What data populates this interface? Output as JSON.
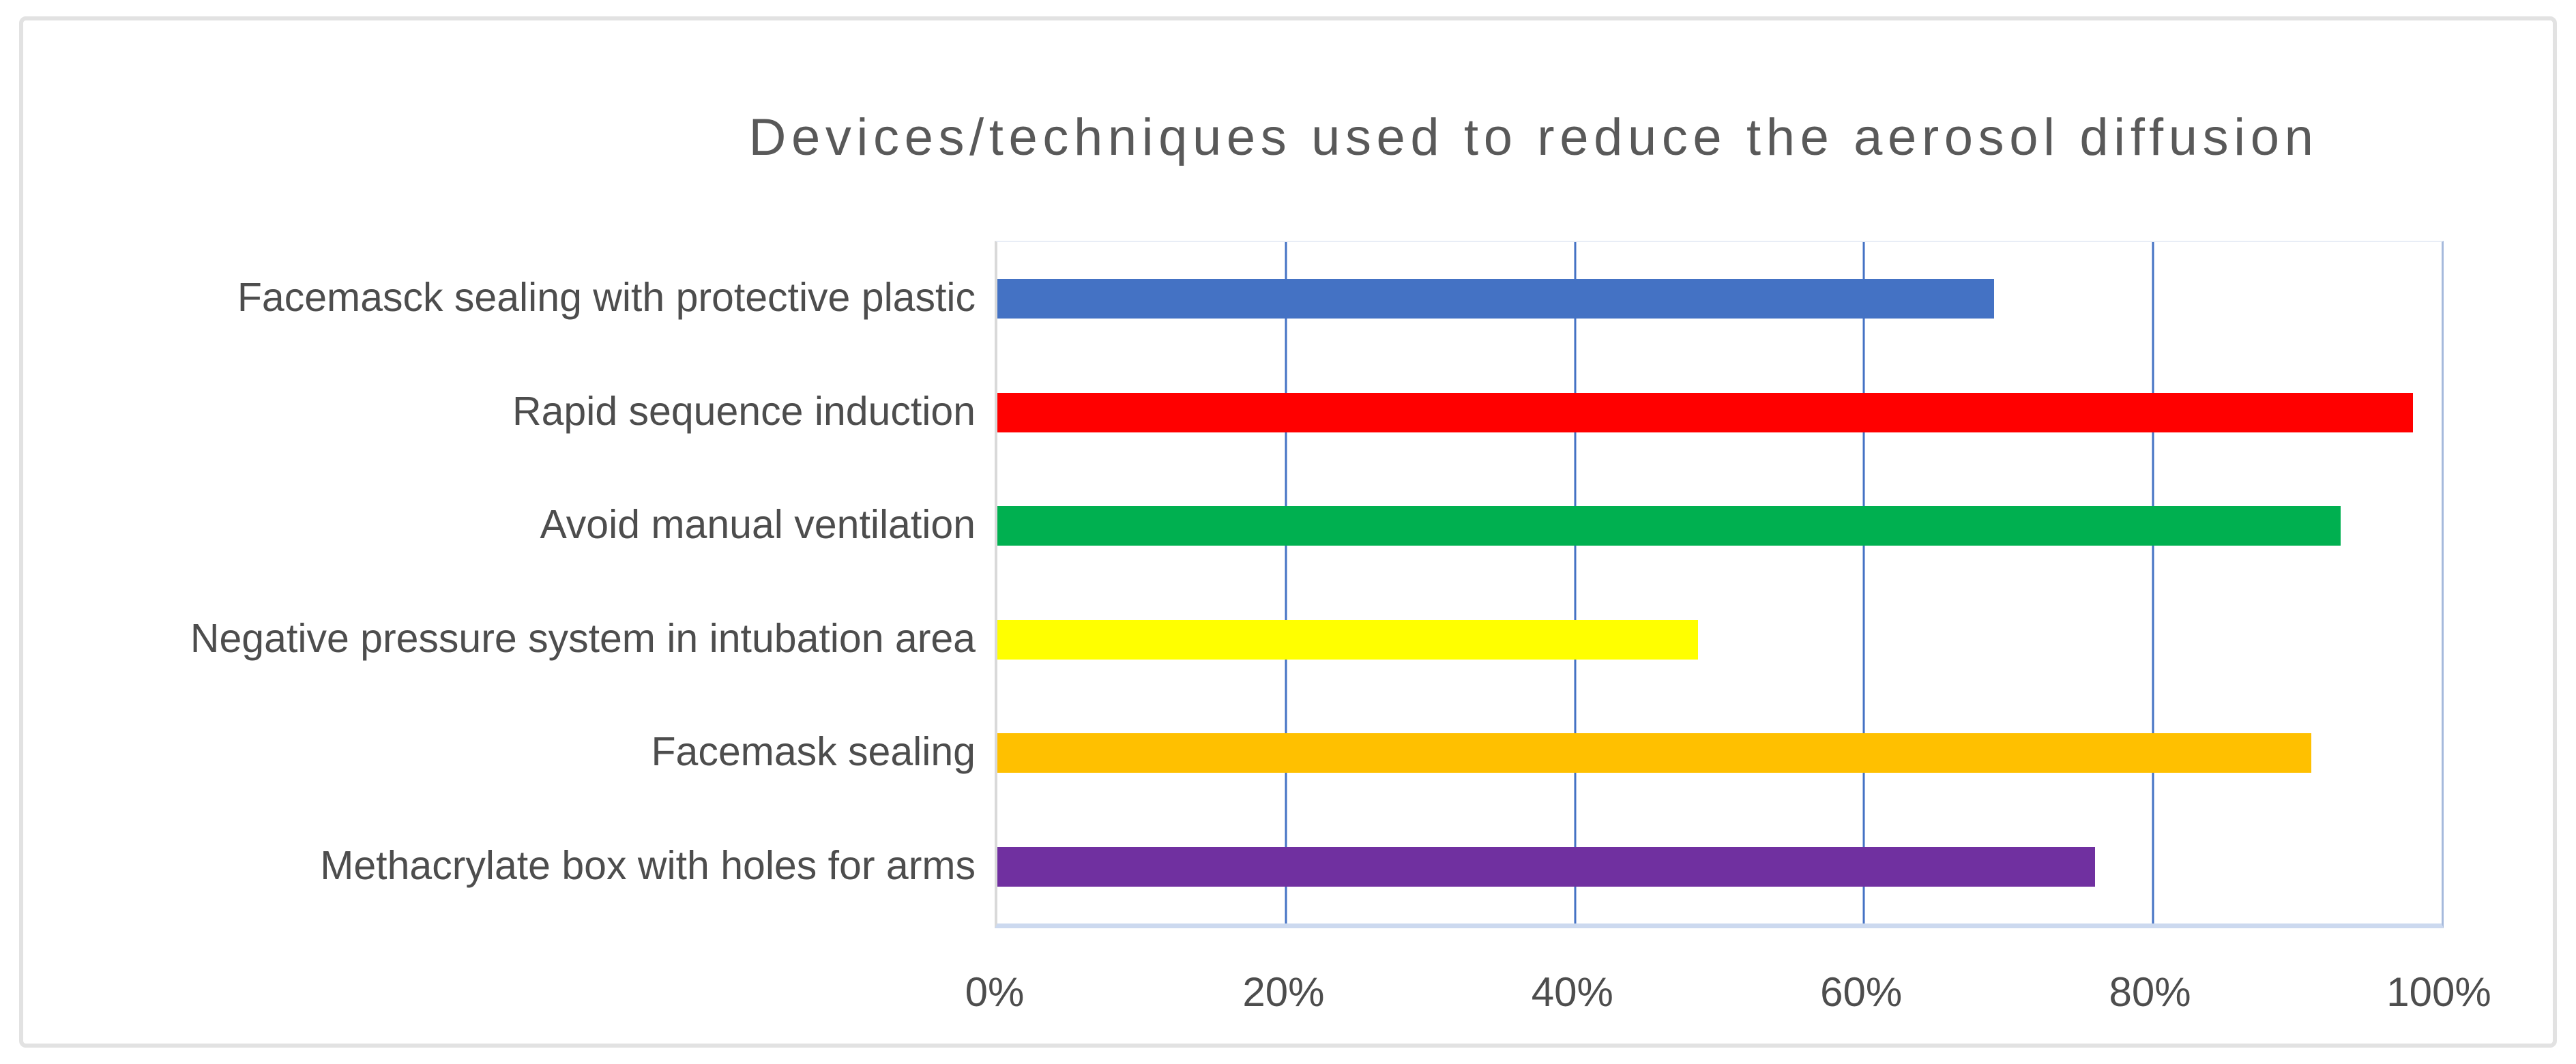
{
  "chart_data": {
    "type": "bar",
    "orientation": "horizontal",
    "title": "Devices/techniques used to reduce the aerosol diffusion",
    "categories": [
      "Facemasck sealing with protective plastic",
      "Rapid sequence induction",
      "Avoid manual ventilation",
      "Negative pressure system in intubation area",
      "Facemask sealing",
      "Methacrylate box with holes for arms"
    ],
    "values": [
      69,
      98,
      93,
      48.5,
      91,
      76
    ],
    "value_unit": "%",
    "bar_colors": [
      "#4472c4",
      "#ff0000",
      "#00b050",
      "#ffff00",
      "#ffc000",
      "#7030a0"
    ],
    "xlabel": "",
    "ylabel": "",
    "xlim": [
      0,
      100
    ],
    "x_tick_labels": [
      "0%",
      "20%",
      "40%",
      "60%",
      "80%",
      "100%"
    ],
    "x_tick_values": [
      0,
      20,
      40,
      60,
      80,
      100
    ],
    "gridlines": {
      "axis": "x",
      "interval": 20,
      "color": "#4472c4",
      "on": true
    },
    "legend": "none",
    "data_labels": "none",
    "colors": {
      "title_text": "#595959",
      "axis_label_text": "#4d4d4d",
      "value_axis_line": "#d9d9d9",
      "category_axis_line": "#ccd9ef",
      "plot_right_border": "#a6badc",
      "outer_frame_border": "#e2e2e2",
      "background": "#ffffff"
    }
  }
}
